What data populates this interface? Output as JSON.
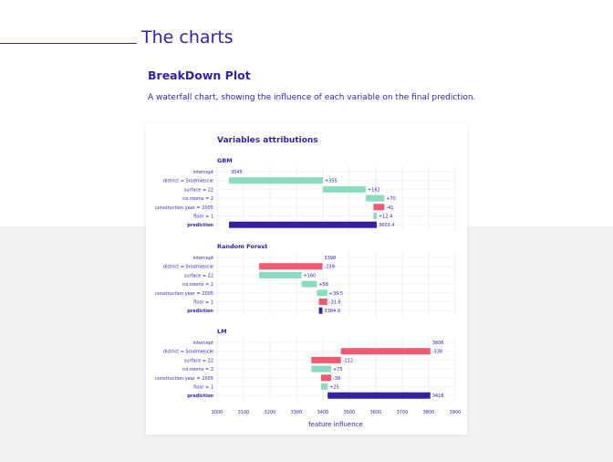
{
  "section_title": "The charts",
  "plot_title": "BreakDown Plot",
  "description": "A waterfall chart, showing the influence of each variable on the final prediction.",
  "colors": {
    "accent": "#371ea3",
    "positive": "#8bdcbe",
    "negative": "#f05a71",
    "background_band": "#f2f2f4"
  },
  "chart_data": {
    "type": "bar",
    "subtype": "waterfall",
    "title": "Variables attributions",
    "xlabel": "feature influence",
    "xlim": [
      3000,
      3900
    ],
    "xticks": [
      "3000",
      "3100",
      "3200",
      "3300",
      "3400",
      "3500",
      "3600",
      "3700",
      "3800",
      "3900"
    ],
    "grid": true,
    "categories": [
      "intercept",
      "district = Srodmiescie",
      "surface = 22",
      "no.rooms = 2",
      "construction.year = 2005",
      "floor = 1",
      "prediction"
    ],
    "panels": [
      {
        "name": "GBM",
        "intercept": 3045,
        "contributions": [
          355,
          162,
          70,
          -41,
          12.4
        ],
        "prediction": 3603.4,
        "labels": [
          "3045",
          "+355",
          "+162",
          "+70",
          "-41",
          "+12.4",
          "3603.4"
        ]
      },
      {
        "name": "Random Forest",
        "intercept": 3398,
        "contributions": [
          -239,
          160,
          58,
          39.5,
          -31.6
        ],
        "prediction": 3384.9,
        "labels": [
          "3398",
          "-239",
          "+160",
          "+58",
          "+39.5",
          "-31.6",
          "3384.9"
        ]
      },
      {
        "name": "LM",
        "intercept": 3806,
        "contributions": [
          -338,
          -112,
          75,
          -38,
          25
        ],
        "prediction": 3418,
        "labels": [
          "3806",
          "-338",
          "-112",
          "+75",
          "-38",
          "+25",
          "3418"
        ]
      }
    ]
  }
}
